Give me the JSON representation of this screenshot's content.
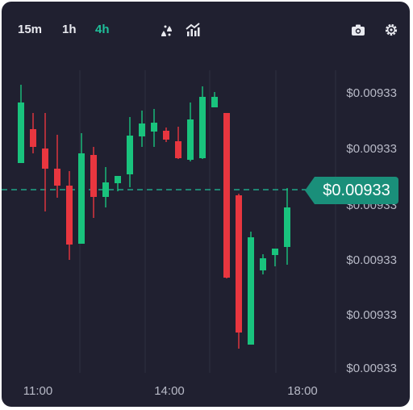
{
  "toolbar": {
    "timeframes": [
      {
        "label": "15m",
        "active": false
      },
      {
        "label": "1h",
        "active": false
      },
      {
        "label": "4h",
        "active": true
      }
    ],
    "icons": [
      "indicators-icon",
      "chart-type-icon",
      "camera-icon",
      "gear-icon"
    ]
  },
  "current_price": "$0.00933",
  "colors": {
    "up": "#19c37d",
    "down": "#e8363f",
    "accent": "#1fbf9a",
    "background": "#202030"
  },
  "chart_data": {
    "type": "candlestick",
    "y_axis_labels": [
      "$0.00933",
      "$0.00933",
      "$0.00933",
      "$0.00933",
      "$0.00933",
      "$0.00933"
    ],
    "x_axis_labels": [
      "11:00",
      "14:00",
      "18:00"
    ],
    "candles": [
      {
        "dir": "up",
        "o": 0.00933,
        "h": 0.00933,
        "l": 0.00933,
        "c": 0.00933
      },
      {
        "dir": "down",
        "o": 0.00933,
        "h": 0.00933,
        "l": 0.00933,
        "c": 0.00933
      }
    ]
  }
}
